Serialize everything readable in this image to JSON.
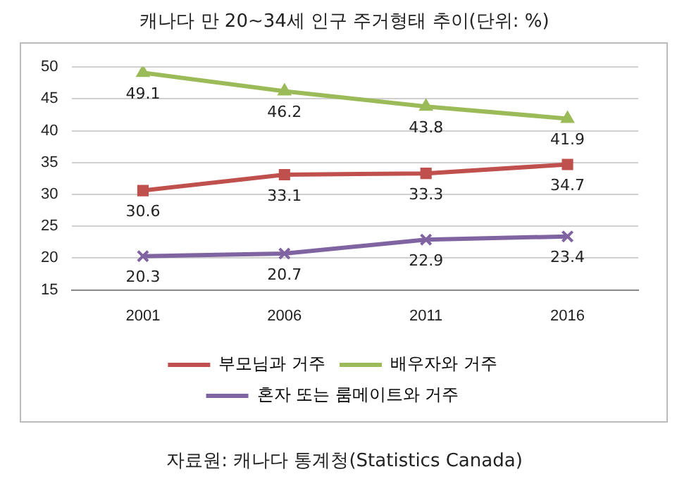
{
  "chart_data": {
    "type": "line",
    "title": "캐나다 만 20~34세 인구 주거형태 추이(단위: %)",
    "categories": [
      "2001",
      "2006",
      "2011",
      "2016"
    ],
    "series": [
      {
        "name": "부모님과 거주",
        "color": "#c0504d",
        "marker": "square",
        "values": [
          30.6,
          33.1,
          33.3,
          34.7
        ]
      },
      {
        "name": "배우자와 거주",
        "color": "#9bbb59",
        "marker": "triangle",
        "values": [
          49.1,
          46.2,
          43.8,
          41.9
        ]
      },
      {
        "name": "혼자 또는 룸메이트와 거주",
        "color": "#8064a2",
        "marker": "cross",
        "values": [
          20.3,
          20.7,
          22.9,
          23.4
        ]
      }
    ],
    "ylim": [
      15,
      50
    ],
    "yticks": [
      15,
      20,
      25,
      30,
      35,
      40,
      45,
      50
    ],
    "grid": "y",
    "legend": "bottom",
    "data_labels": true,
    "line_style": "solid",
    "annotations": [
      "자료원: 캐나다 통계청(Statistics Canada)"
    ]
  }
}
